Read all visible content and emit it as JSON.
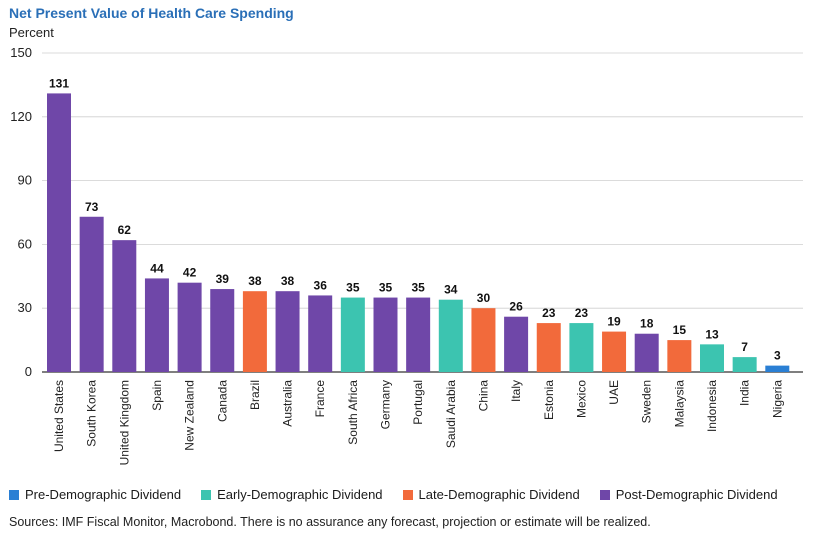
{
  "title": "Net Present Value of Health Care Spending",
  "ylabel": "Percent",
  "source": "Sources: IMF Fiscal Monitor, Macrobond. There is no assurance any forecast, projection or estimate will be realized.",
  "legend": [
    {
      "key": "pre",
      "label": "Pre-Demographic Dividend",
      "color": "#2a7fd4"
    },
    {
      "key": "early",
      "label": "Early-Demographic Dividend",
      "color": "#3cc4b0"
    },
    {
      "key": "late",
      "label": "Late-Demographic Dividend",
      "color": "#f26a3b"
    },
    {
      "key": "post",
      "label": "Post-Demographic Dividend",
      "color": "#6f47a8"
    }
  ],
  "chart_data": {
    "type": "bar",
    "title": "Net Present Value of Health Care Spending",
    "ylabel": "Percent",
    "xlabel": "",
    "ylim": [
      0,
      150
    ],
    "yticks": [
      0,
      30,
      60,
      90,
      120,
      150
    ],
    "grid": true,
    "legend_placement": "bottom",
    "categories": [
      "United States",
      "South Korea",
      "United Kingdom",
      "Spain",
      "New Zealand",
      "Canada",
      "Brazil",
      "Australia",
      "France",
      "South Africa",
      "Germany",
      "Portugal",
      "Saudi Arabia",
      "China",
      "Italy",
      "Estonia",
      "Mexico",
      "UAE",
      "Sweden",
      "Malaysia",
      "Indonesia",
      "India",
      "Nigeria"
    ],
    "values": [
      131,
      73,
      62,
      44,
      42,
      39,
      38,
      38,
      36,
      35,
      35,
      35,
      34,
      30,
      26,
      23,
      23,
      19,
      18,
      15,
      13,
      7,
      3
    ],
    "groups": [
      "post",
      "post",
      "post",
      "post",
      "post",
      "post",
      "late",
      "post",
      "post",
      "early",
      "post",
      "post",
      "early",
      "late",
      "post",
      "late",
      "early",
      "late",
      "post",
      "late",
      "early",
      "early",
      "pre"
    ]
  }
}
